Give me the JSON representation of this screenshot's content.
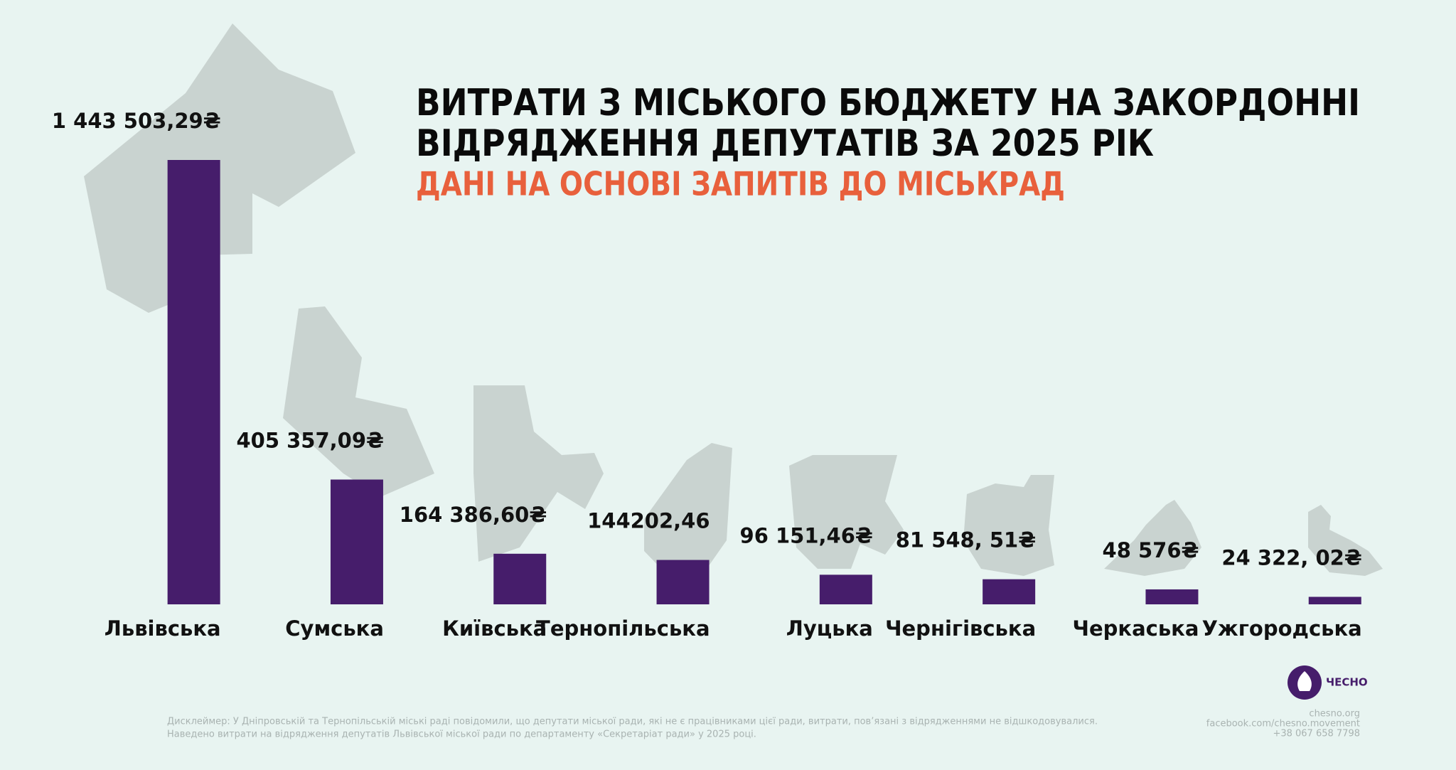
{
  "chart_data": {
    "type": "bar",
    "title": [
      "ВИТРАТИ З МІСЬКОГО БЮДЖЕТУ НА ЗАКОРДОННІ",
      "ВІДРЯДЖЕННЯ ДЕПУТАТІВ ЗА 2025 РІК"
    ],
    "subtitle": "ДАНІ НА ОСНОВІ ЗАПИТІВ ДО МІСЬКРАД",
    "categories": [
      "Львівська",
      "Сумська",
      "Київська",
      "Тернопільська",
      "Луцька",
      "Чернігівська",
      "Черкаська",
      "Ужгородська"
    ],
    "values": [
      1443503.29,
      405357.09,
      164386.6,
      144202.46,
      96151.46,
      81548.51,
      48576,
      24322.02
    ],
    "value_labels": [
      "1 443 503,29₴",
      "405 357,09₴",
      "164 386,60₴",
      "144202,46",
      "96 151,46₴",
      "81 548, 51₴",
      "48 576₴",
      "24 322, 02₴"
    ],
    "color": "#461d6b"
  },
  "footer": {
    "disclaimer": [
      "Дисклеймер: У Дніпровській та Тернопільській міські раді повідомили, що депутати міської ради, які не є працівниками цієї ради, витрати, пов’язані з відрядженнями не відшкодовувалися.",
      "Наведено витрати на відрядження депутатів Львівської міської ради по департаменту «Секретаріат ради» у 2025 році."
    ],
    "logo": "ЧЕСНО",
    "contacts": [
      "chesno.org",
      "facebook.com/chesno.movement",
      "+38 067 658 7798"
    ]
  }
}
